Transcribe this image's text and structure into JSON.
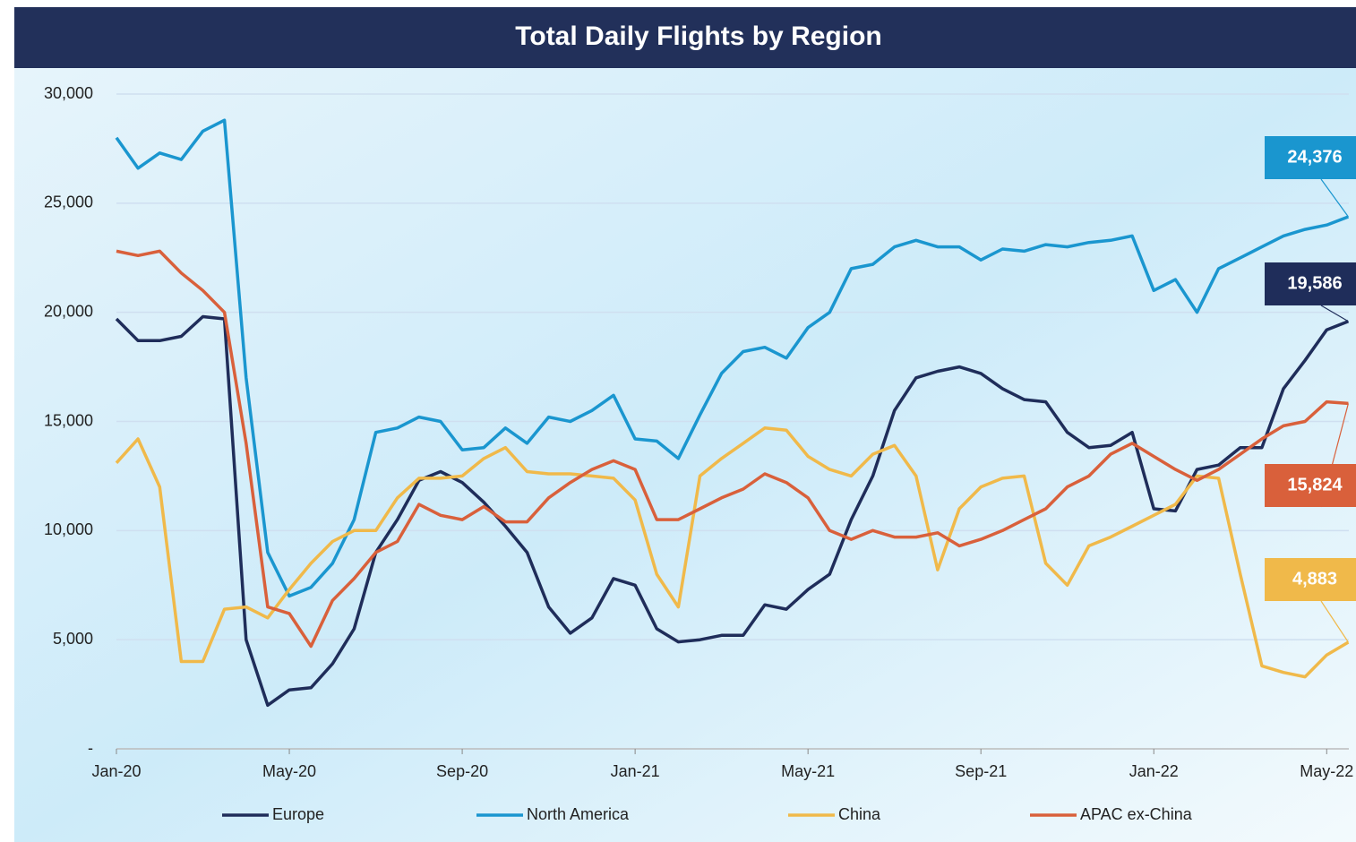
{
  "chart_data": {
    "type": "line",
    "title": "Total Daily Flights by Region",
    "categories": [
      "Jan-20",
      null,
      null,
      null,
      null,
      null,
      null,
      null,
      "May-20",
      null,
      null,
      null,
      null,
      null,
      null,
      null,
      "Sep-20",
      null,
      null,
      null,
      null,
      null,
      null,
      null,
      "Jan-21",
      null,
      null,
      null,
      null,
      null,
      null,
      null,
      "May-21",
      null,
      null,
      null,
      null,
      null,
      null,
      null,
      "Sep-21",
      null,
      null,
      null,
      null,
      null,
      null,
      null,
      "Jan-22",
      null,
      null,
      null,
      null,
      null,
      null,
      null,
      "May-22",
      null
    ],
    "series": [
      {
        "name": "Europe",
        "color": "#1f2d5a",
        "values": [
          19700,
          18700,
          18700,
          18900,
          19800,
          19700,
          5000,
          2000,
          2700,
          2800,
          3900,
          5500,
          9000,
          10500,
          12300,
          12700,
          12200,
          11300,
          10200,
          9000,
          6500,
          5300,
          6000,
          7800,
          7500,
          5500,
          4900,
          5000,
          5200,
          5200,
          6600,
          6400,
          7300,
          8000,
          10500,
          12500,
          15500,
          17000,
          17300,
          17500,
          17200,
          16500,
          16000,
          15900,
          14500,
          13800,
          13900,
          14500,
          11000,
          10900,
          12800,
          13000,
          13800,
          13800,
          16500,
          17800,
          19200,
          19586
        ],
        "value_labels": [
          null,
          null,
          null,
          null,
          null,
          null,
          null,
          null,
          null,
          null,
          null,
          null,
          null,
          null,
          null,
          null,
          null,
          null,
          null,
          null,
          null,
          null,
          null,
          null,
          null,
          null,
          null,
          null,
          null,
          null,
          null,
          null,
          null,
          null,
          null,
          null,
          null,
          null,
          null,
          null,
          null,
          null,
          null,
          null,
          null,
          null,
          null,
          null,
          null,
          null,
          null,
          null,
          null,
          null,
          null,
          null,
          null,
          "19,586"
        ]
      },
      {
        "name": "North America",
        "color": "#1a96cf",
        "values": [
          28000,
          26600,
          27300,
          27000,
          28300,
          28800,
          17000,
          9000,
          7000,
          7400,
          8500,
          10500,
          14500,
          14700,
          15200,
          15000,
          13700,
          13800,
          14700,
          14000,
          15200,
          15000,
          15500,
          16200,
          14200,
          14100,
          13300,
          15300,
          17200,
          18200,
          18400,
          17900,
          19300,
          20000,
          22000,
          22200,
          23000,
          23300,
          23000,
          23000,
          22400,
          22900,
          22800,
          23100,
          23000,
          23200,
          23300,
          23500,
          21000,
          21500,
          20000,
          22000,
          22500,
          23000,
          23500,
          23800,
          24000,
          24376
        ],
        "value_labels": [
          null,
          null,
          null,
          null,
          null,
          null,
          null,
          null,
          null,
          null,
          null,
          null,
          null,
          null,
          null,
          null,
          null,
          null,
          null,
          null,
          null,
          null,
          null,
          null,
          null,
          null,
          null,
          null,
          null,
          null,
          null,
          null,
          null,
          null,
          null,
          null,
          null,
          null,
          null,
          null,
          null,
          null,
          null,
          null,
          null,
          null,
          null,
          null,
          null,
          null,
          null,
          null,
          null,
          null,
          null,
          null,
          null,
          "24,376"
        ]
      },
      {
        "name": "China",
        "color": "#f0b94a",
        "values": [
          13100,
          14200,
          12000,
          4000,
          4000,
          6400,
          6500,
          6000,
          7300,
          8500,
          9500,
          10000,
          10000,
          11500,
          12400,
          12400,
          12500,
          13300,
          13800,
          12700,
          12600,
          12600,
          12500,
          12400,
          11400,
          8000,
          6500,
          12500,
          13300,
          14000,
          14700,
          14600,
          13400,
          12800,
          12500,
          13500,
          13900,
          12500,
          8200,
          11000,
          12000,
          12400,
          12500,
          8500,
          7500,
          9300,
          9700,
          10200,
          10700,
          11200,
          12500,
          12400,
          8000,
          3800,
          3500,
          3300,
          4300,
          4883
        ],
        "value_labels": [
          null,
          null,
          null,
          null,
          null,
          null,
          null,
          null,
          null,
          null,
          null,
          null,
          null,
          null,
          null,
          null,
          null,
          null,
          null,
          null,
          null,
          null,
          null,
          null,
          null,
          null,
          null,
          null,
          null,
          null,
          null,
          null,
          null,
          null,
          null,
          null,
          null,
          null,
          null,
          null,
          null,
          null,
          null,
          null,
          null,
          null,
          null,
          null,
          null,
          null,
          null,
          null,
          null,
          null,
          null,
          null,
          null,
          "4,883"
        ]
      },
      {
        "name": "APAC ex-China",
        "color": "#d9603b",
        "values": [
          22800,
          22600,
          22800,
          21800,
          21000,
          20000,
          14000,
          6500,
          6200,
          4700,
          6800,
          7800,
          9000,
          9500,
          11200,
          10700,
          10500,
          11100,
          10400,
          10400,
          11500,
          12200,
          12800,
          13200,
          12800,
          10500,
          10500,
          11000,
          11500,
          11900,
          12600,
          12200,
          11500,
          10000,
          9600,
          10000,
          9700,
          9700,
          9900,
          9300,
          9600,
          10000,
          10500,
          11000,
          12000,
          12500,
          13500,
          14000,
          13400,
          12800,
          12300,
          12800,
          13500,
          14200,
          14800,
          15000,
          15900,
          15824
        ],
        "value_labels": [
          null,
          null,
          null,
          null,
          null,
          null,
          null,
          null,
          null,
          null,
          null,
          null,
          null,
          null,
          null,
          null,
          null,
          null,
          null,
          null,
          null,
          null,
          null,
          null,
          null,
          null,
          null,
          null,
          null,
          null,
          null,
          null,
          null,
          null,
          null,
          null,
          null,
          null,
          null,
          null,
          null,
          null,
          null,
          null,
          null,
          null,
          null,
          null,
          null,
          null,
          null,
          null,
          null,
          null,
          null,
          null,
          null,
          "15,824"
        ]
      }
    ],
    "ylim": [
      0,
      30000
    ],
    "yticks": [
      {
        "value": 0,
        "label": "-"
      },
      {
        "value": 5000,
        "label": "5,000"
      },
      {
        "value": 10000,
        "label": "10,000"
      },
      {
        "value": 15000,
        "label": "15,000"
      },
      {
        "value": 20000,
        "label": "20,000"
      },
      {
        "value": 25000,
        "label": "25,000"
      },
      {
        "value": 30000,
        "label": "30,000"
      }
    ],
    "grid": true,
    "legend": "bottom"
  }
}
